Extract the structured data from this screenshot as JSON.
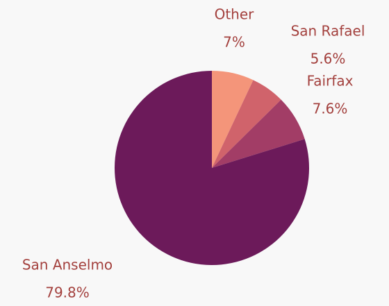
{
  "chart_data": {
    "type": "pie",
    "categories": [
      "Other",
      "San Rafael",
      "Fairfax",
      "San Anselmo"
    ],
    "values": [
      7,
      5.6,
      7.6,
      79.8
    ],
    "value_labels": [
      "7%",
      "5.6%",
      "7.6%",
      "79.8%"
    ],
    "colors": [
      "#f4957a",
      "#d0636b",
      "#a23d66",
      "#6c1a5a"
    ]
  }
}
